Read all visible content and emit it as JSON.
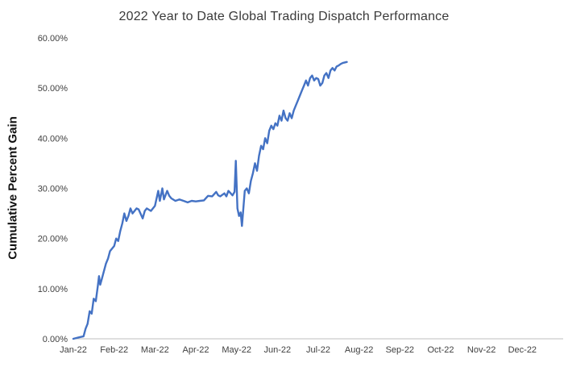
{
  "chart_data": {
    "type": "line",
    "title": "2022 Year to Date Global Trading Dispatch Performance",
    "xlabel": "",
    "ylabel": "Cumulative Percent Gain",
    "grid": false,
    "legend": false,
    "line_color": "#4472C4",
    "axis_color": "#bfbfbf",
    "xlim": [
      0,
      12
    ],
    "ylim": [
      0,
      60
    ],
    "x_tick_labels": [
      "Jan-22",
      "Feb-22",
      "Mar-22",
      "Apr-22",
      "May-22",
      "Jun-22",
      "Jul-22",
      "Aug-22",
      "Sep-22",
      "Oct-22",
      "Nov-22",
      "Dec-22"
    ],
    "y_ticks": [
      0,
      10,
      20,
      30,
      40,
      50,
      60
    ],
    "y_tick_labels": [
      "0.00%",
      "10.00%",
      "20.00%",
      "30.00%",
      "40.00%",
      "50.00%",
      "60.00%"
    ],
    "series": [
      {
        "name": "Cumulative Percent Gain",
        "x_unit": "months-from-Jan-22",
        "x": [
          0,
          0.15,
          0.25,
          0.3,
          0.35,
          0.4,
          0.45,
          0.5,
          0.55,
          0.6,
          0.63,
          0.66,
          0.7,
          0.75,
          0.8,
          0.85,
          0.9,
          1.0,
          1.05,
          1.1,
          1.15,
          1.2,
          1.25,
          1.3,
          1.35,
          1.4,
          1.45,
          1.5,
          1.55,
          1.6,
          1.7,
          1.75,
          1.8,
          1.9,
          2.0,
          2.08,
          2.12,
          2.18,
          2.22,
          2.3,
          2.35,
          2.4,
          2.5,
          2.6,
          2.7,
          2.8,
          2.9,
          3.0,
          3.1,
          3.2,
          3.3,
          3.4,
          3.5,
          3.55,
          3.6,
          3.7,
          3.75,
          3.8,
          3.9,
          3.95,
          3.98,
          4.02,
          4.06,
          4.1,
          4.13,
          4.2,
          4.25,
          4.3,
          4.35,
          4.4,
          4.45,
          4.5,
          4.55,
          4.6,
          4.65,
          4.7,
          4.75,
          4.8,
          4.85,
          4.9,
          4.95,
          5.0,
          5.05,
          5.1,
          5.15,
          5.2,
          5.25,
          5.3,
          5.35,
          5.4,
          5.45,
          5.5,
          5.55,
          5.6,
          5.65,
          5.7,
          5.75,
          5.8,
          5.85,
          5.9,
          5.95,
          6.0,
          6.05,
          6.1,
          6.15,
          6.2,
          6.25,
          6.3,
          6.35,
          6.4,
          6.45,
          6.5,
          6.55,
          6.6,
          6.7
        ],
        "y": [
          0,
          0.3,
          0.5,
          2,
          3,
          5.5,
          5,
          8,
          7.5,
          10.5,
          12.5,
          10.8,
          12,
          13.5,
          15,
          16,
          17.5,
          18.5,
          20,
          19.5,
          21.5,
          23,
          25,
          23.5,
          24.5,
          26,
          25,
          25.5,
          26,
          25.8,
          24,
          25.5,
          26,
          25.5,
          26.5,
          29.5,
          27.5,
          30,
          27.8,
          29.5,
          28.5,
          28,
          27.5,
          27.8,
          27.5,
          27.2,
          27.5,
          27.4,
          27.5,
          27.6,
          28.5,
          28.4,
          29.3,
          28.6,
          28.4,
          29,
          28.4,
          29.5,
          28.6,
          29.3,
          35.5,
          26,
          24.5,
          25.2,
          22.5,
          29.5,
          30,
          29,
          31.5,
          33,
          35,
          33.5,
          36.5,
          38.5,
          37.8,
          40,
          39,
          41.5,
          42.5,
          41.8,
          43,
          42.5,
          44.5,
          43.5,
          45.5,
          44,
          43.5,
          45,
          44,
          45.5,
          46.5,
          47.5,
          48.5,
          49.5,
          50.5,
          51.5,
          50.5,
          52,
          52.5,
          51.5,
          52,
          51.8,
          50.5,
          51,
          52.5,
          53,
          52,
          53.5,
          54,
          53.5,
          54.3,
          54.5,
          54.8,
          55,
          55.2
        ]
      }
    ]
  }
}
